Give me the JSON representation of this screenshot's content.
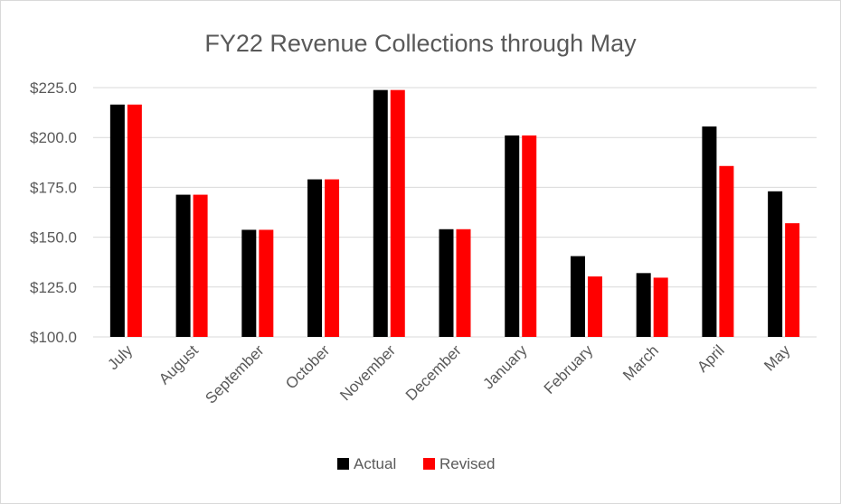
{
  "chart_data": {
    "type": "bar",
    "title": "FY22 Revenue Collections through May",
    "xlabel": "",
    "ylabel": "",
    "ylim": [
      100,
      225
    ],
    "y_ticks": [
      100,
      125,
      150,
      175,
      200,
      225
    ],
    "y_tick_labels": [
      "$100.0",
      "$125.0",
      "$150.0",
      "$175.0",
      "$200.0",
      "$225.0"
    ],
    "categories": [
      "July",
      "August",
      "September",
      "October",
      "November",
      "December",
      "January",
      "February",
      "March",
      "April",
      "May"
    ],
    "series": [
      {
        "name": "Actual",
        "color": "#000000",
        "values": [
          216.5,
          171.3,
          153.7,
          179.0,
          223.8,
          154.0,
          201.0,
          140.5,
          132.0,
          205.5,
          173.0
        ]
      },
      {
        "name": "Revised",
        "color": "#ff0000",
        "values": [
          216.5,
          171.3,
          153.7,
          179.0,
          223.8,
          154.0,
          201.0,
          130.3,
          129.7,
          185.7,
          157.0
        ]
      }
    ],
    "grid": true,
    "legend_position": "bottom"
  }
}
